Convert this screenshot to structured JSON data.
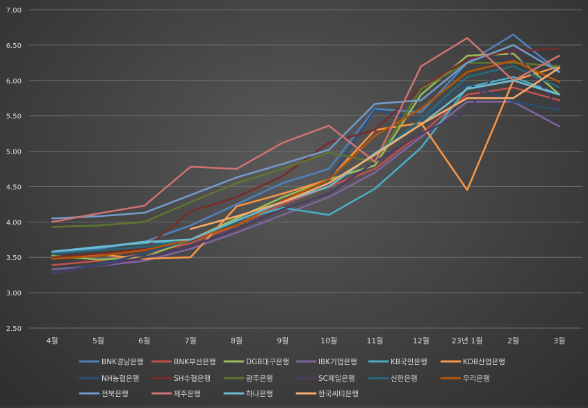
{
  "chart_data": {
    "type": "line",
    "title": "",
    "xlabel": "",
    "ylabel": "",
    "categories": [
      "4월",
      "5월",
      "6월",
      "7월",
      "8월",
      "9월",
      "10월",
      "11월",
      "12월",
      "23년 1월",
      "2월",
      "3월"
    ],
    "ylim": [
      2.5,
      7.0
    ],
    "yticks": [
      "2.50",
      "3.00",
      "3.50",
      "4.00",
      "4.50",
      "5.00",
      "5.50",
      "6.00",
      "6.50",
      "7.00"
    ],
    "grid": true,
    "legend_position": "bottom",
    "series": [
      {
        "name": "BNK경남은행",
        "color": "#4f81bd",
        "values": [
          3.55,
          3.62,
          3.72,
          3.95,
          4.25,
          4.55,
          4.75,
          5.6,
          5.55,
          6.25,
          6.65,
          6.12
        ]
      },
      {
        "name": "BNK부산은행",
        "color": "#c0504d",
        "values": [
          3.39,
          3.45,
          3.55,
          3.7,
          3.95,
          4.25,
          4.5,
          4.75,
          5.25,
          5.8,
          5.9,
          5.72
        ]
      },
      {
        "name": "DGB대구은행",
        "color": "#9bbb59",
        "values": [
          3.52,
          3.47,
          3.5,
          3.75,
          4.05,
          4.35,
          4.6,
          4.8,
          5.8,
          6.35,
          6.38,
          5.8
        ]
      },
      {
        "name": "IBK기업은행",
        "color": "#8064a2",
        "values": [
          3.33,
          3.38,
          3.45,
          3.62,
          3.85,
          4.1,
          4.35,
          4.7,
          5.2,
          5.7,
          5.7,
          5.35
        ]
      },
      {
        "name": "KB국민은행",
        "color": "#4bacc6",
        "values": [
          3.58,
          3.65,
          3.7,
          3.75,
          4.02,
          4.2,
          4.1,
          4.47,
          5.05,
          5.9,
          6.05,
          5.8
        ]
      },
      {
        "name": "KDB산업은행",
        "color": "#f79646",
        "values": [
          3.5,
          3.54,
          3.48,
          3.5,
          4.22,
          4.4,
          4.6,
          5.3,
          5.4,
          4.45,
          6.0,
          6.2
        ]
      },
      {
        "name": "NH농협은행",
        "color": "#2c4d75",
        "values": [
          3.28,
          3.4,
          3.55,
          3.75,
          4.02,
          4.3,
          4.6,
          5.58,
          5.45,
          5.95,
          5.7,
          5.58
        ]
      },
      {
        "name": "SH수협은행",
        "color": "#772c2a",
        "values": [
          3.5,
          3.55,
          3.62,
          4.15,
          4.35,
          4.65,
          5.12,
          5.3,
          5.9,
          6.3,
          6.42,
          6.45
        ]
      },
      {
        "name": "광주은행",
        "color": "#5f7530",
        "values": [
          3.93,
          3.95,
          4.0,
          4.28,
          4.55,
          4.75,
          4.98,
          4.85,
          5.88,
          6.25,
          6.25,
          6.2
        ]
      },
      {
        "name": "SC제일은행",
        "color": "#4d3b62",
        "values": [
          3.27,
          3.38,
          3.5,
          3.65,
          3.9,
          4.18,
          4.4,
          4.85,
          5.25,
          5.55,
          6.45,
          5.6
        ]
      },
      {
        "name": "신한은행",
        "color": "#276a7c",
        "values": [
          3.55,
          3.6,
          3.65,
          3.75,
          4.0,
          4.28,
          4.55,
          4.95,
          5.45,
          6.05,
          6.2,
          5.9
        ]
      },
      {
        "name": "우리은행",
        "color": "#b65708",
        "values": [
          3.48,
          3.52,
          3.6,
          3.75,
          3.95,
          4.3,
          4.6,
          5.22,
          5.6,
          6.12,
          6.28,
          5.98
        ]
      },
      {
        "name": "전북은행",
        "color": "#729aca",
        "values": [
          4.05,
          4.08,
          4.13,
          4.38,
          4.63,
          4.82,
          5.02,
          5.67,
          5.72,
          6.25,
          6.5,
          6.12
        ]
      },
      {
        "name": "제주은행",
        "color": "#cd7371",
        "values": [
          4.0,
          4.12,
          4.23,
          4.78,
          4.75,
          5.12,
          5.36,
          4.85,
          6.2,
          6.6,
          6.0,
          6.35
        ]
      },
      {
        "name": "하나은행",
        "color": "#6fbdd1",
        "values": [
          3.58,
          3.64,
          3.72,
          3.75,
          4.02,
          4.28,
          4.5,
          4.97,
          5.38,
          5.88,
          6.0,
          5.8
        ]
      },
      {
        "name": "한국씨티은행",
        "color": "#f9ab6b",
        "values": [
          null,
          null,
          null,
          3.9,
          4.08,
          4.28,
          4.55,
          4.95,
          5.38,
          5.75,
          5.75,
          6.18
        ]
      }
    ]
  }
}
